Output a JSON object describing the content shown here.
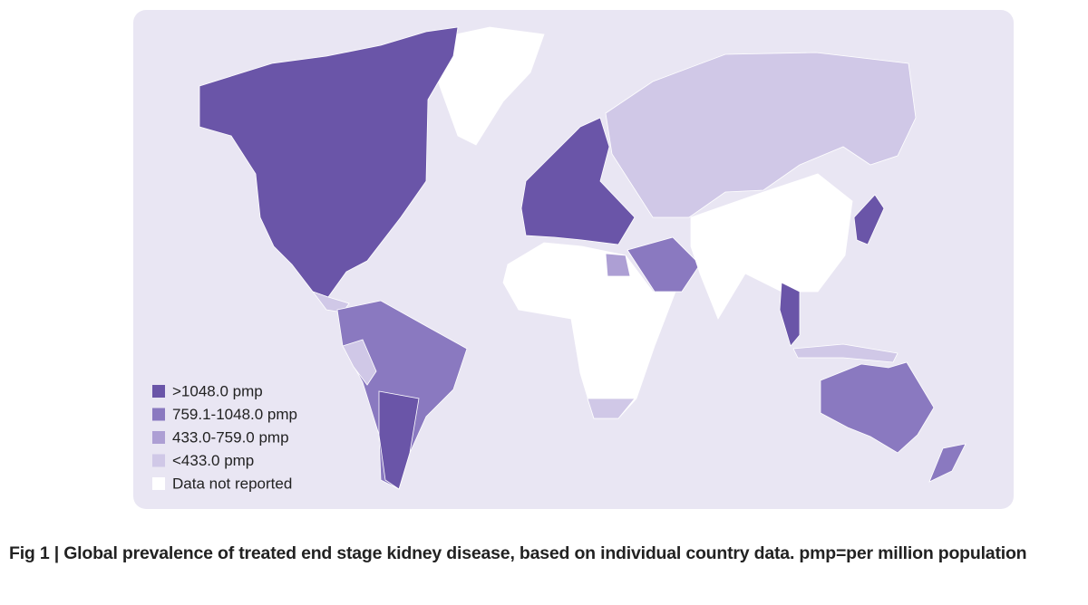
{
  "map": {
    "legend": [
      {
        "label": ">1048.0 pmp",
        "color": "#6a55a8"
      },
      {
        "label": "759.1-1048.0 pmp",
        "color": "#8a79c0"
      },
      {
        "label": "433.0-759.0 pmp",
        "color": "#ad9fd4"
      },
      {
        "label": "<433.0 pmp",
        "color": "#d0c8e7"
      },
      {
        "label": "Data not reported",
        "color": "#ffffff"
      }
    ],
    "background": "#e9e6f3"
  },
  "caption": "Fig 1 | Global prevalence of treated end stage kidney disease, based on individual country data. pmp=per million population"
}
